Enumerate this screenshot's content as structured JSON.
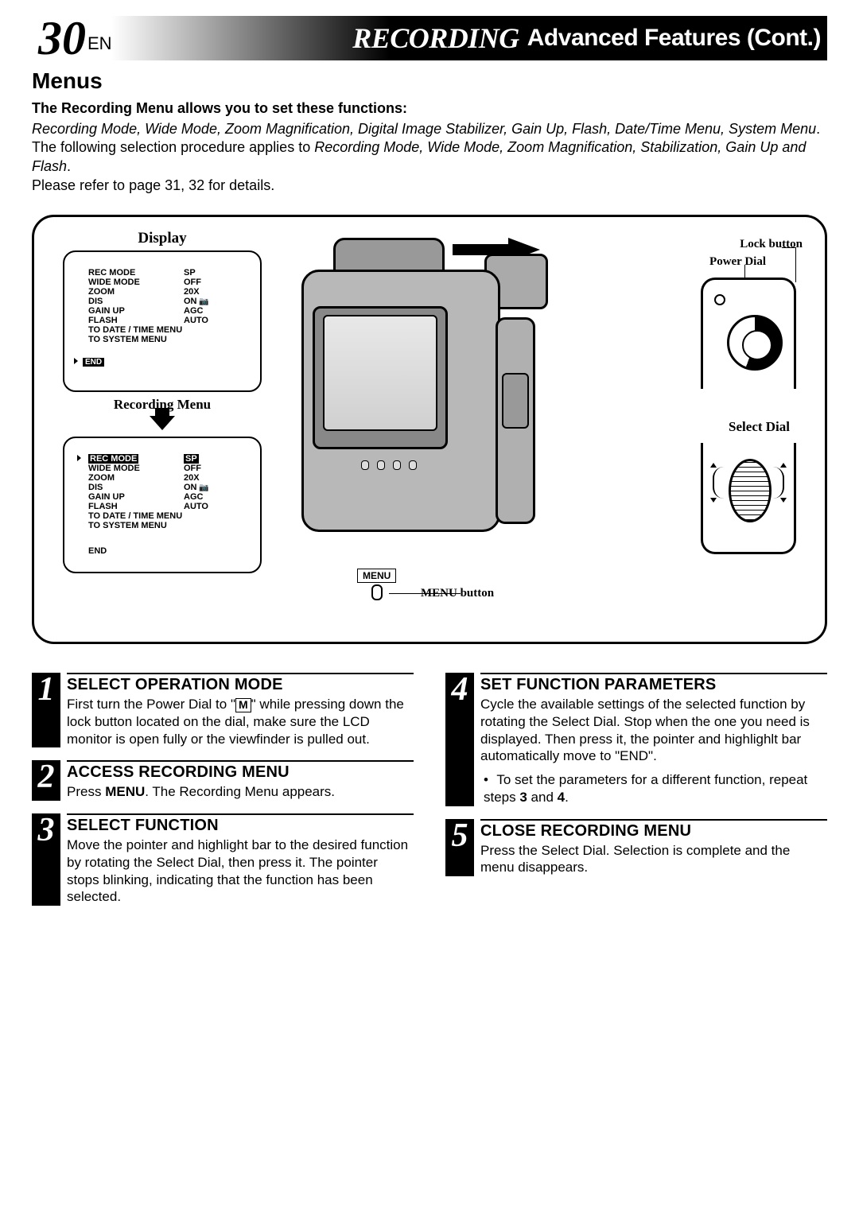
{
  "header": {
    "page_number": "30",
    "lang": "EN",
    "title_main": "RECORDING",
    "title_sub": "Advanced Features (Cont.)"
  },
  "section_title": "Menus",
  "intro": {
    "bold_line": "The Recording Menu allows you to set these functions:",
    "italic_list": "Recording Mode, Wide Mode, Zoom Magnification, Digital Image Stabilizer, Gain Up, Flash, Date/Time Menu, System Menu",
    "mid_text": ". The following selection procedure applies to ",
    "italic_list2": "Recording Mode, Wide Mode, Zoom Magnification, Stabilization, Gain Up and Flash",
    "period": ".",
    "ref": "Please refer to page 31, 32 for details."
  },
  "figure": {
    "display_label": "Display",
    "recording_menu_label": "Recording Menu",
    "menu_items": [
      {
        "k": "REC MODE",
        "v": "SP"
      },
      {
        "k": "WIDE MODE",
        "v": "OFF"
      },
      {
        "k": "ZOOM",
        "v": "20X"
      },
      {
        "k": "DIS",
        "v": "ON",
        "cam": true
      },
      {
        "k": "GAIN UP",
        "v": "AGC"
      },
      {
        "k": "FLASH",
        "v": "AUTO"
      },
      {
        "k": "TO DATE / TIME MENU",
        "v": ""
      },
      {
        "k": "TO SYSTEM MENU",
        "v": ""
      }
    ],
    "end_label": "END",
    "menu_btn_label": "MENU",
    "menu_btn_caption": "MENU button",
    "lock_label": "Lock button",
    "power_dial_label": "Power Dial",
    "select_dial_label": "Select Dial"
  },
  "steps": {
    "s1": {
      "num": "1",
      "title": "SELECT OPERATION MODE",
      "body_a": "First turn the Power Dial to \"",
      "body_b": "\" while pressing down the lock button located on the dial, make sure the LCD monitor is open fully or the viewfinder is pulled out."
    },
    "s2": {
      "num": "2",
      "title": "ACCESS RECORDING MENU",
      "body_a": "Press ",
      "body_bold": "MENU",
      "body_b": ". The Recording Menu appears."
    },
    "s3": {
      "num": "3",
      "title": "SELECT FUNCTION",
      "body": "Move the pointer and highlight bar to the desired function by rotating the Select Dial, then press it. The pointer stops blinking, indicating that the function has been selected."
    },
    "s4": {
      "num": "4",
      "title": "SET FUNCTION PARAMETERS",
      "body": "Cycle the available settings of the selected function by rotating the Select Dial. Stop when the one you need is displayed. Then press it, the pointer and highlighlt bar automatically move to \"END\".",
      "bullet_a": "To set the parameters for a different function, repeat steps ",
      "bullet_b1": "3",
      "bullet_mid": " and ",
      "bullet_b2": "4",
      "bullet_end": "."
    },
    "s5": {
      "num": "5",
      "title": "CLOSE RECORDING MENU",
      "body": "Press the Select Dial. Selection is complete and the menu disappears."
    }
  }
}
